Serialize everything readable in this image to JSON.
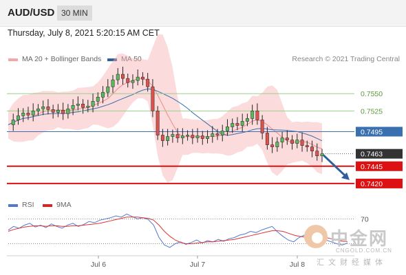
{
  "header": {
    "pair": "AUD/USD",
    "timeframe": "30 MIN"
  },
  "timestamp": "Thursday, July 8, 2021 5:20:15 AM CET",
  "legend": {
    "bb_label": "MA 20 + Bollinger Bands",
    "ma50_label": "MA 50",
    "credit": "Research © 2021 Trading Central"
  },
  "rsi_legend": {
    "rsi_label": "RSI",
    "ma_label": "9MA"
  },
  "colors": {
    "up": "#5cb85c",
    "down": "#d9534f",
    "ma50": "#3a6fb0",
    "bb": "#f6b0b0",
    "support": "#dd1111",
    "rsi": "#5577cc",
    "rsi_ma": "#dd3333",
    "current": "#333333"
  },
  "watermark": {
    "title": "中金网",
    "url": "CNGOLD.COM.CN",
    "sub": "汇文财经媒体"
  },
  "chart_data": [
    {
      "type": "candlestick",
      "series_name": "AUD/USD",
      "x_tick_labels": [
        "Jul 6",
        "Jul 7",
        "Jul 8"
      ],
      "ylim": [
        0.7405,
        0.759
      ],
      "levels": [
        {
          "value": 0.755,
          "label": "0.7550",
          "kind": "resistance"
        },
        {
          "value": 0.7525,
          "label": "0.7525",
          "kind": "resistance"
        },
        {
          "value": 0.7495,
          "label": "0.7495",
          "kind": "pivot"
        },
        {
          "value": 0.7463,
          "label": "0.7463",
          "kind": "current"
        },
        {
          "value": 0.7445,
          "label": "0.7445",
          "kind": "support"
        },
        {
          "value": 0.742,
          "label": "0.7420",
          "kind": "support"
        }
      ],
      "close_path": [
        0.7505,
        0.7512,
        0.7518,
        0.7522,
        0.7519,
        0.7525,
        0.7528,
        0.7531,
        0.7527,
        0.7523,
        0.7526,
        0.7521,
        0.7528,
        0.7533,
        0.7535,
        0.753,
        0.7532,
        0.7539,
        0.7545,
        0.7552,
        0.756,
        0.757,
        0.7578,
        0.7572,
        0.7566,
        0.7569,
        0.7574,
        0.7571,
        0.756,
        0.7525,
        0.749,
        0.7482,
        0.7488,
        0.7491,
        0.7486,
        0.7489,
        0.749,
        0.7486,
        0.7489,
        0.7485,
        0.7488,
        0.7492,
        0.749,
        0.7496,
        0.7502,
        0.7507,
        0.7504,
        0.751,
        0.7514,
        0.7525,
        0.7512,
        0.7493,
        0.7476,
        0.7473,
        0.748,
        0.7486,
        0.7483,
        0.7478,
        0.7483,
        0.7475,
        0.7473,
        0.7467,
        0.746,
        0.7463
      ],
      "arrow_target": 0.7425
    },
    {
      "type": "line",
      "series": [
        {
          "name": "RSI"
        },
        {
          "name": "9MA"
        }
      ],
      "level_label": "70",
      "ylim": [
        15,
        85
      ],
      "rsi": [
        52,
        58,
        55,
        60,
        63,
        57,
        60,
        56,
        62,
        58,
        55,
        60,
        63,
        58,
        61,
        66,
        64,
        68,
        70,
        72,
        75,
        73,
        78,
        74,
        70,
        72,
        69,
        60,
        40,
        28,
        24,
        30,
        33,
        29,
        32,
        36,
        31,
        35,
        33,
        37,
        34,
        38,
        40,
        44,
        46,
        50,
        48,
        52,
        55,
        58,
        49,
        42,
        36,
        33,
        40,
        44,
        41,
        38,
        43,
        36,
        33,
        30,
        28,
        31
      ],
      "rsi_ma": [
        50,
        53,
        55,
        57,
        58,
        59,
        59,
        58,
        59,
        59,
        58,
        58,
        59,
        59,
        60,
        61,
        62,
        63,
        65,
        67,
        69,
        71,
        73,
        73,
        73,
        72,
        71,
        68,
        60,
        50,
        42,
        36,
        32,
        30,
        30,
        31,
        32,
        33,
        33,
        34,
        35,
        36,
        37,
        39,
        41,
        43,
        45,
        47,
        49,
        51,
        51,
        50,
        47,
        44,
        42,
        41,
        40,
        40,
        41,
        40,
        38,
        36,
        34,
        33
      ]
    }
  ]
}
